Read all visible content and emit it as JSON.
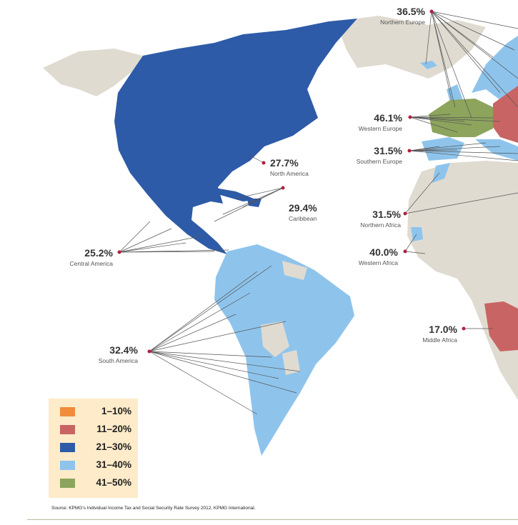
{
  "colors": {
    "1-10": "#f08c3c",
    "11-20": "#c96464",
    "21-30": "#2e5ba8",
    "31-40": "#8ec4ec",
    "41-50": "#8ca45c",
    "no_data": "#e0dbd1",
    "dot": "#b0213e"
  },
  "regions": [
    {
      "pct": "36.5%",
      "name": "Northern Europe"
    },
    {
      "pct": "46.1%",
      "name": "Western Europe"
    },
    {
      "pct": "31.5%",
      "name": "Southern Europe"
    },
    {
      "pct": "27.7%",
      "name": "North America"
    },
    {
      "pct": "29.4%",
      "name": "Caribbean"
    },
    {
      "pct": "31.5%",
      "name": "Northern Africa"
    },
    {
      "pct": "40.0%",
      "name": "Western Africa"
    },
    {
      "pct": "25.2%",
      "name": "Central America"
    },
    {
      "pct": "32.4%",
      "name": "South America"
    },
    {
      "pct": "17.0%",
      "name": "Middle Africa"
    }
  ],
  "legend": [
    {
      "label": "1–10%",
      "color": "#f08c3c"
    },
    {
      "label": "11–20%",
      "color": "#c96464"
    },
    {
      "label": "21–30%",
      "color": "#2e5ba8"
    },
    {
      "label": "31–40%",
      "color": "#8ec4ec"
    },
    {
      "label": "41–50%",
      "color": "#8ca45c"
    }
  ],
  "source": "Source: KPMG's Individual Income Tax and Social Security Rate Survey 2012, KPMG International."
}
